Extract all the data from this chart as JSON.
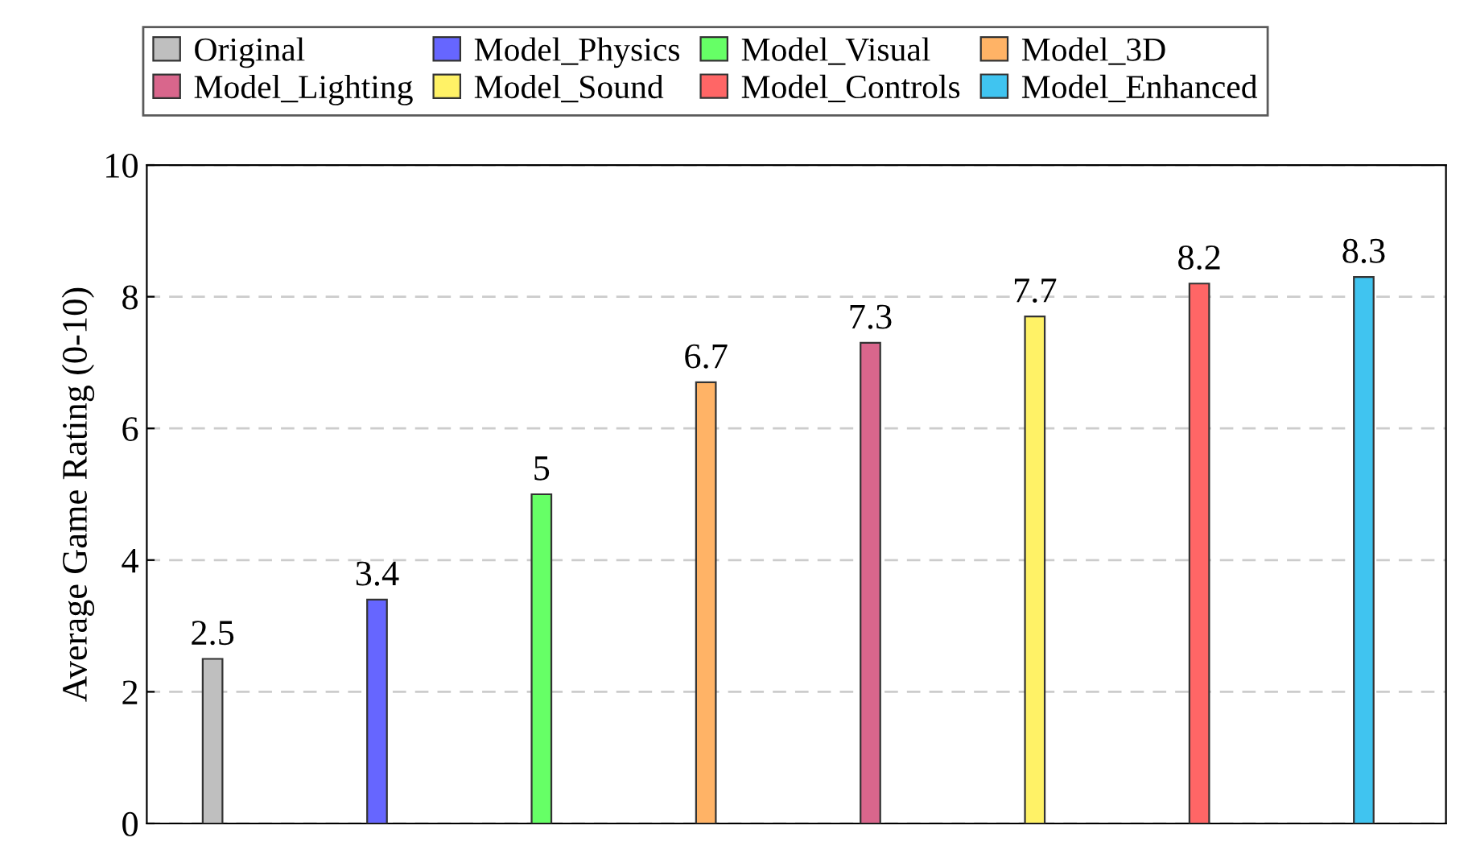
{
  "chart_data": {
    "type": "bar",
    "ylabel": "Average Game Rating (0-10)",
    "categories": [
      null,
      null,
      null,
      null,
      null,
      null,
      null,
      null
    ],
    "series": [
      {
        "name": "Original",
        "color": "#bfbfbf",
        "values": [
          2.5,
          null,
          null,
          null,
          null,
          null,
          null,
          null
        ]
      },
      {
        "name": "Model_Physics",
        "color": "#6666ff",
        "values": [
          null,
          3.4,
          null,
          null,
          null,
          null,
          null,
          null
        ]
      },
      {
        "name": "Model_Visual",
        "color": "#66ff66",
        "values": [
          null,
          null,
          5,
          null,
          null,
          null,
          null,
          null
        ]
      },
      {
        "name": "Model_3D",
        "color": "#ffb366",
        "values": [
          null,
          null,
          null,
          6.7,
          null,
          null,
          null,
          null
        ]
      },
      {
        "name": "Model_Lighting",
        "color": "#d9668c",
        "values": [
          null,
          null,
          null,
          null,
          7.3,
          null,
          null,
          null
        ]
      },
      {
        "name": "Model_Sound",
        "color": "#fff266",
        "values": [
          null,
          null,
          null,
          null,
          null,
          7.7,
          null,
          null
        ]
      },
      {
        "name": "Model_Controls",
        "color": "#ff6666",
        "values": [
          null,
          null,
          null,
          null,
          null,
          null,
          8.2,
          null
        ]
      },
      {
        "name": "Model_Enhanced",
        "color": "#40c4f0",
        "values": [
          null,
          null,
          null,
          null,
          null,
          null,
          null,
          8.3
        ]
      }
    ],
    "ylim": [
      0,
      10
    ],
    "yticks": [
      0,
      2,
      4,
      6,
      8,
      10
    ],
    "grid": "y",
    "legend": "top",
    "data_labels": true
  }
}
